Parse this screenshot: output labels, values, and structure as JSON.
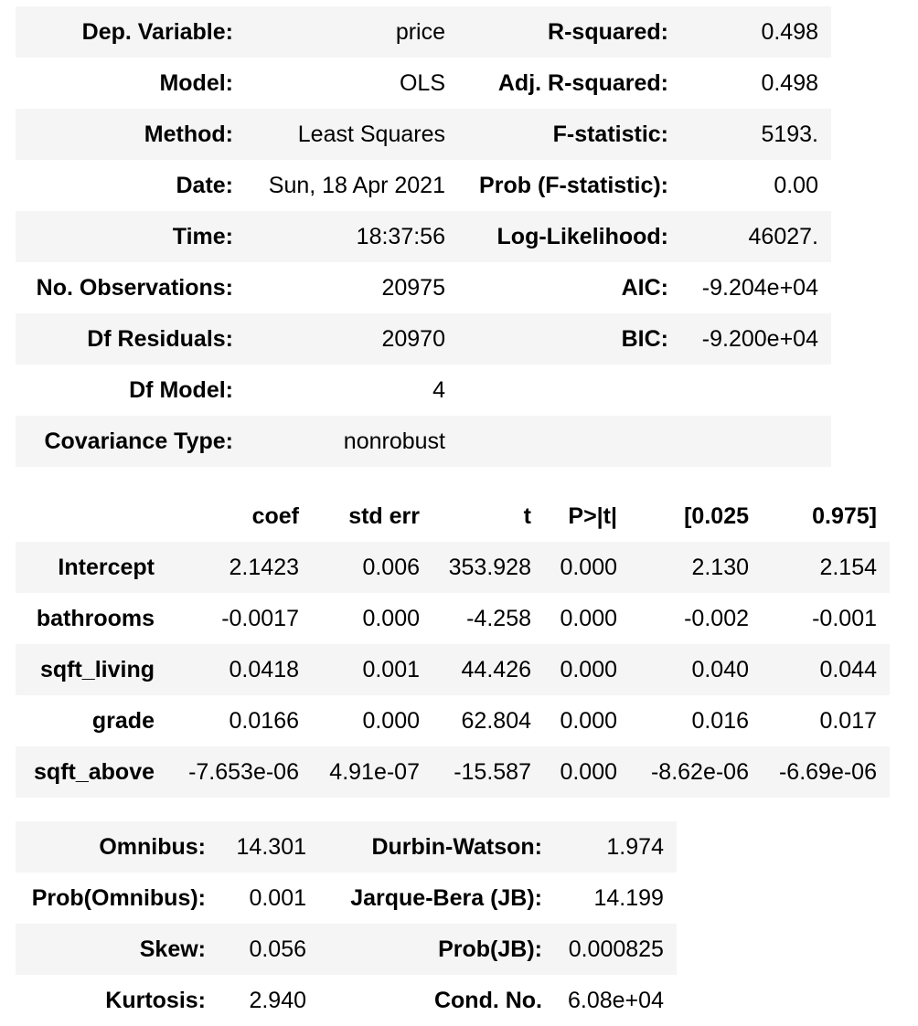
{
  "summary": {
    "rows": [
      {
        "label1": "Dep. Variable:",
        "value1": "price",
        "label2": "R-squared:",
        "value2": "0.498"
      },
      {
        "label1": "Model:",
        "value1": "OLS",
        "label2": "Adj. R-squared:",
        "value2": "0.498"
      },
      {
        "label1": "Method:",
        "value1": "Least Squares",
        "label2": "F-statistic:",
        "value2": "5193."
      },
      {
        "label1": "Date:",
        "value1": "Sun, 18 Apr 2021",
        "label2": "Prob (F-statistic):",
        "value2": "0.00"
      },
      {
        "label1": "Time:",
        "value1": "18:37:56",
        "label2": "Log-Likelihood:",
        "value2": "46027."
      },
      {
        "label1": "No. Observations:",
        "value1": "20975",
        "label2": "AIC:",
        "value2": "-9.204e+04"
      },
      {
        "label1": "Df Residuals:",
        "value1": "20970",
        "label2": "BIC:",
        "value2": "-9.200e+04"
      },
      {
        "label1": "Df Model:",
        "value1": "4",
        "label2": "",
        "value2": ""
      },
      {
        "label1": "Covariance Type:",
        "value1": "nonrobust",
        "label2": "",
        "value2": ""
      }
    ]
  },
  "coefficients": {
    "headers": [
      "",
      "coef",
      "std err",
      "t",
      "P>|t|",
      "[0.025",
      "0.975]"
    ],
    "rows": [
      {
        "name": "Intercept",
        "coef": "2.1423",
        "std_err": "0.006",
        "t": "353.928",
        "p": "0.000",
        "ci_low": "2.130",
        "ci_high": "2.154"
      },
      {
        "name": "bathrooms",
        "coef": "-0.0017",
        "std_err": "0.000",
        "t": "-4.258",
        "p": "0.000",
        "ci_low": "-0.002",
        "ci_high": "-0.001"
      },
      {
        "name": "sqft_living",
        "coef": "0.0418",
        "std_err": "0.001",
        "t": "44.426",
        "p": "0.000",
        "ci_low": "0.040",
        "ci_high": "0.044"
      },
      {
        "name": "grade",
        "coef": "0.0166",
        "std_err": "0.000",
        "t": "62.804",
        "p": "0.000",
        "ci_low": "0.016",
        "ci_high": "0.017"
      },
      {
        "name": "sqft_above",
        "coef": "-7.653e-06",
        "std_err": "4.91e-07",
        "t": "-15.587",
        "p": "0.000",
        "ci_low": "-8.62e-06",
        "ci_high": "-6.69e-06"
      }
    ]
  },
  "diagnostics": {
    "rows": [
      {
        "label1": "Omnibus:",
        "value1": "14.301",
        "label2": "Durbin-Watson:",
        "value2": "1.974"
      },
      {
        "label1": "Prob(Omnibus):",
        "value1": "0.001",
        "label2": "Jarque-Bera (JB):",
        "value2": "14.199"
      },
      {
        "label1": "Skew:",
        "value1": "0.056",
        "label2": "Prob(JB):",
        "value2": "0.000825"
      },
      {
        "label1": "Kurtosis:",
        "value1": "2.940",
        "label2": "Cond. No.",
        "value2": "6.08e+04"
      }
    ]
  }
}
